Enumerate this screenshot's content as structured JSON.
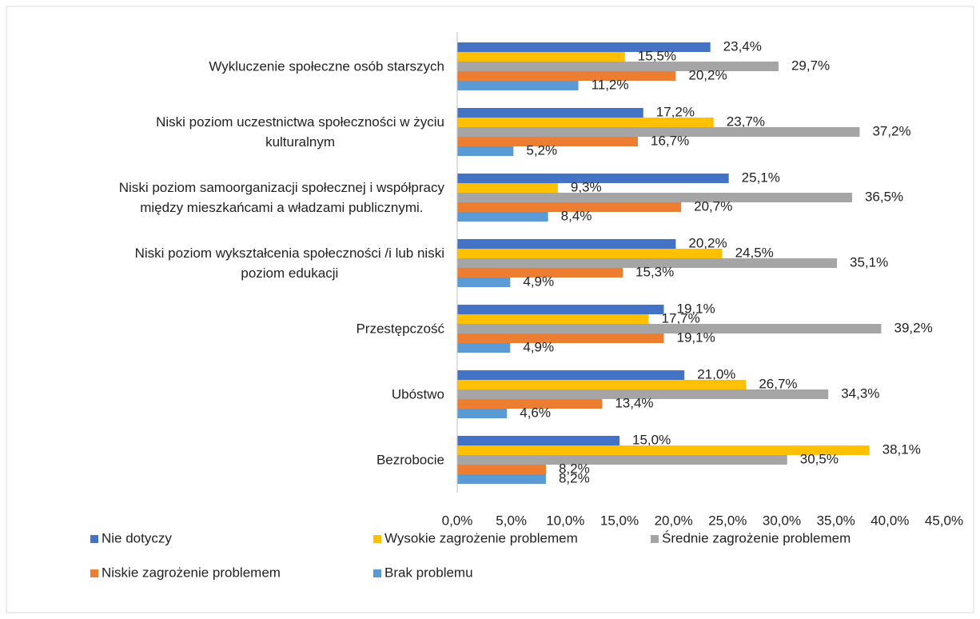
{
  "chart_data": {
    "type": "hbar",
    "categories": [
      "Wykluczenie społeczne osób starszych",
      "Niski poziom uczestnictwa społeczności w życiu\nkulturalnym",
      "Niski poziom samoorganizacji społecznej i współpracy\nmiędzy mieszkańcami  a władzami publicznymi.",
      "Niski poziom wykształcenia społeczności /i lub niski\npoziom edukacji",
      "Przestępczość",
      "Ubóstwo ",
      "Bezrobocie"
    ],
    "series": [
      {
        "name": "Nie dotyczy",
        "color": "#4472c4",
        "values": [
          23.4,
          17.2,
          25.1,
          20.2,
          19.1,
          21.0,
          15.0
        ],
        "value_labels": [
          "23,4%",
          "17,2%",
          "25,1%",
          "20,2%",
          "19,1%",
          "21,0%",
          "15,0%"
        ]
      },
      {
        "name": "Wysokie zagrożenie problemem",
        "color": "#ffc000",
        "values": [
          15.5,
          23.7,
          9.3,
          24.5,
          17.7,
          26.7,
          38.1
        ],
        "value_labels": [
          "15,5%",
          "23,7%",
          "9,3%",
          "24,5%",
          "17,7%",
          "26,7%",
          "38,1%"
        ]
      },
      {
        "name": "Średnie zagrożenie problemem",
        "color": "#a5a5a5",
        "values": [
          29.7,
          37.2,
          36.5,
          35.1,
          39.2,
          34.3,
          30.5
        ],
        "value_labels": [
          "29,7%",
          "37,2%",
          "36,5%",
          "35,1%",
          "39,2%",
          "34,3%",
          "30,5%"
        ]
      },
      {
        "name": "Niskie zagrożenie problemem",
        "color": "#ed7d31",
        "values": [
          20.2,
          16.7,
          20.7,
          15.3,
          19.1,
          13.4,
          8.2
        ],
        "value_labels": [
          "20,2%",
          "16,7%",
          "20,7%",
          "15,3%",
          "19,1%",
          "13,4%",
          "8,2%"
        ]
      },
      {
        "name": "Brak problemu",
        "color": "#5b9bd5",
        "values": [
          11.2,
          5.2,
          8.4,
          4.9,
          4.9,
          4.6,
          8.2
        ],
        "value_labels": [
          "11,2%",
          "5,2%",
          "8,4%",
          "4,9%",
          "4,9%",
          "4,6%",
          "8,2%"
        ]
      }
    ],
    "xlim": [
      0,
      45
    ],
    "xticks": [
      {
        "value": 0,
        "label": "0,0%"
      },
      {
        "value": 5,
        "label": "5,0%"
      },
      {
        "value": 10,
        "label": "10,0%"
      },
      {
        "value": 15,
        "label": "15,0%"
      },
      {
        "value": 20,
        "label": "20,0%"
      },
      {
        "value": 25,
        "label": "25,0%"
      },
      {
        "value": 30,
        "label": "30,0%"
      },
      {
        "value": 35,
        "label": "35,0%"
      },
      {
        "value": 40,
        "label": "40,0%"
      },
      {
        "value": 45,
        "label": "45,0%"
      }
    ],
    "grid": false,
    "legend": "bottom"
  }
}
